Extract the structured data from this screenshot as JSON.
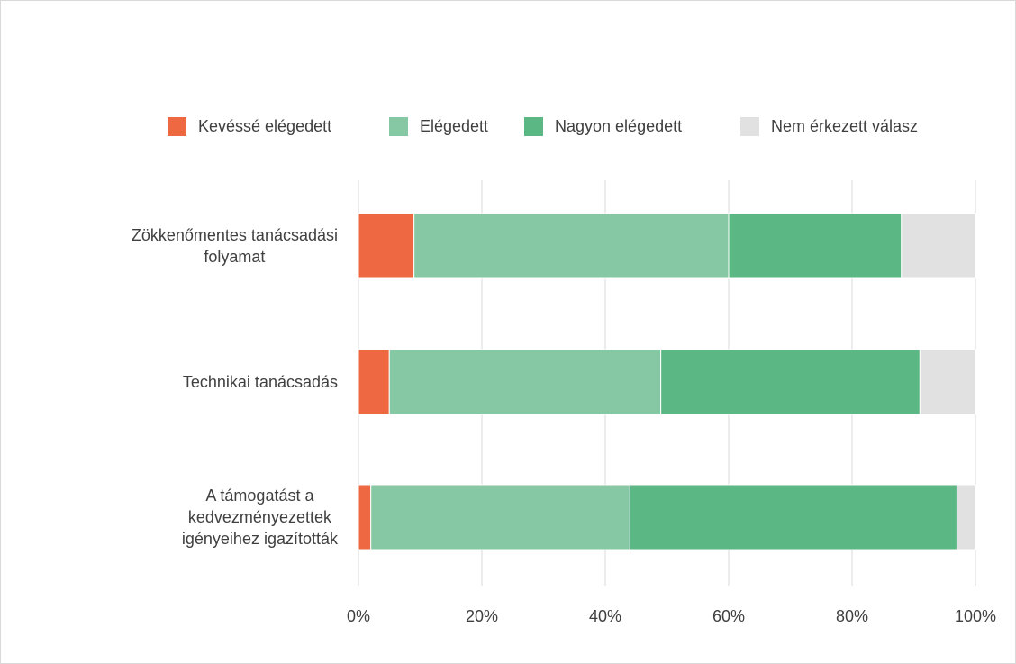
{
  "chart_data": {
    "type": "stacked_bar_horizontal",
    "categories": [
      "Zökkenőmentes tanácsadási\nfolyamat",
      "Technikai tanácsadás",
      "A támogatást a\nkedvezményezettek\nigényeihez igazították"
    ],
    "series": [
      {
        "name": "Kevéssé elégedett",
        "color": "#ee6941",
        "values": [
          9,
          5,
          2
        ]
      },
      {
        "name": "Elégedett",
        "color": "#86c8a3",
        "values": [
          51,
          44,
          42
        ]
      },
      {
        "name": "Nagyon elégedett",
        "color": "#5bb783",
        "values": [
          28,
          42,
          53
        ]
      },
      {
        "name": "Nem érkezett válasz",
        "color": "#e1e1e1",
        "values": [
          12,
          9,
          3
        ]
      }
    ],
    "xlim": [
      0,
      100
    ],
    "xticks": [
      {
        "value": 0,
        "label": "0%"
      },
      {
        "value": 20,
        "label": "20%"
      },
      {
        "value": 40,
        "label": "40%"
      },
      {
        "value": 60,
        "label": "60%"
      },
      {
        "value": 80,
        "label": "80%"
      },
      {
        "value": 100,
        "label": "100%"
      }
    ],
    "grid": true,
    "legend": "top"
  }
}
